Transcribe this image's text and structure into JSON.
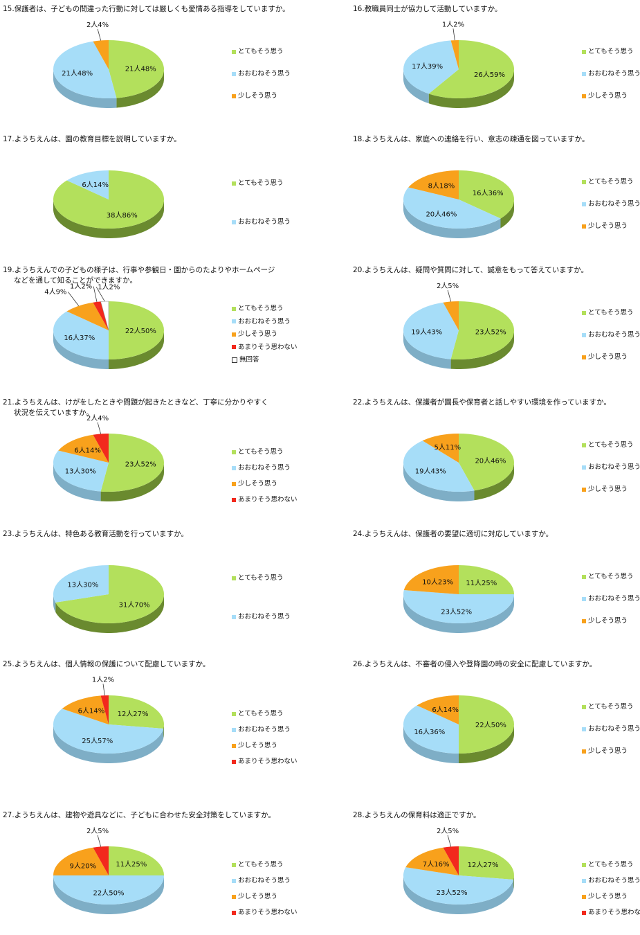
{
  "legend_categories": [
    "とてもそう思う",
    "おおむねそう思う",
    "少しそう思う",
    "あまりそう思わない",
    "無回答"
  ],
  "colors": {
    "top": [
      "#b3e05c",
      "#a6ddf8",
      "#f8a11c",
      "#f2291d",
      "#ffffff"
    ],
    "side": [
      "#6a8a2f",
      "#7eaec6",
      "#b9760f",
      "#a21f17",
      "#bbbbbb"
    ]
  },
  "chart_data": [
    {
      "type": "pie",
      "title": "15.保護者は、子どもの間違った行動に対しては厳しくも愛情ある指導をしていますか。",
      "values": [
        21,
        21,
        2
      ],
      "data_labels": [
        "21人48%",
        "21人48%",
        "2人4%"
      ]
    },
    {
      "type": "pie",
      "title": "16.教職員同士が協力して活動していますか。",
      "values": [
        26,
        17,
        1
      ],
      "data_labels": [
        "26人59%",
        "17人39%",
        "1人2%"
      ]
    },
    {
      "type": "pie",
      "title": "17.ようちえんは、園の教育目標を説明していますか。",
      "values": [
        38,
        6
      ],
      "data_labels": [
        "38人86%",
        "6人14%"
      ]
    },
    {
      "type": "pie",
      "title": "18.ようちえんは、家庭への連絡を行い、意志の疎通を図っていますか。",
      "values": [
        16,
        20,
        8
      ],
      "data_labels": [
        "16人36%",
        "20人46%",
        "8人18%"
      ]
    },
    {
      "type": "pie",
      "title": "19.ようちえんでの子どもの様子は、行事や参観日・園からのたよりやホームページ",
      "title2": "などを通して知ることができますか。",
      "values": [
        22,
        16,
        4,
        1,
        1
      ],
      "data_labels": [
        "22人50%",
        "16人37%",
        "4人9%",
        "1人2%",
        "1人2%"
      ]
    },
    {
      "type": "pie",
      "title": "20.ようちえんは、疑問や質問に対して、誠意をもって答えていますか。",
      "values": [
        23,
        19,
        2
      ],
      "data_labels": [
        "23人52%",
        "19人43%",
        "2人5%"
      ]
    },
    {
      "type": "pie",
      "title": "21.ようちえんは、けがをしたときや問題が起きたときなど、丁寧に分かりやすく",
      "title2": "状況を伝えていますか。",
      "values": [
        23,
        13,
        6,
        2
      ],
      "data_labels": [
        "23人52%",
        "13人30%",
        "6人14%",
        "2人4%"
      ]
    },
    {
      "type": "pie",
      "title": "22.ようちえんは、保護者が園長や保育者と話しやすい環境を作っていますか。",
      "values": [
        20,
        19,
        5
      ],
      "data_labels": [
        "20人46%",
        "19人43%",
        "5人11%"
      ]
    },
    {
      "type": "pie",
      "title": "23.ようちえんは、特色ある教育活動を行っていますか。",
      "values": [
        31,
        13
      ],
      "data_labels": [
        "31人70%",
        "13人30%"
      ]
    },
    {
      "type": "pie",
      "title": "24.ようちえんは、保護者の要望に適切に対応していますか。",
      "values": [
        11,
        23,
        10
      ],
      "data_labels": [
        "11人25%",
        "23人52%",
        "10人23%"
      ]
    },
    {
      "type": "pie",
      "title": "25.ようちえんは、個人情報の保護について配慮していますか。",
      "values": [
        12,
        25,
        6,
        1
      ],
      "data_labels": [
        "12人27%",
        "25人57%",
        "6人14%",
        "1人2%"
      ]
    },
    {
      "type": "pie",
      "title": "26.ようちえんは、不審者の侵入や登降園の時の安全に配慮していますか。",
      "values": [
        22,
        16,
        6
      ],
      "data_labels": [
        "22人50%",
        "16人36%",
        "6人14%"
      ]
    },
    {
      "type": "pie",
      "title": "27.ようちえんは、建物や遊具などに、子どもに合わせた安全対策をしていますか。",
      "values": [
        11,
        22,
        9,
        2
      ],
      "data_labels": [
        "11人25%",
        "22人50%",
        "9人20%",
        "2人5%"
      ]
    },
    {
      "type": "pie",
      "title": "28.ようちえんの保育料は適正ですか。",
      "values": [
        12,
        23,
        7,
        2
      ],
      "data_labels": [
        "12人27%",
        "23人52%",
        "7人16%",
        "2人5%"
      ]
    }
  ]
}
